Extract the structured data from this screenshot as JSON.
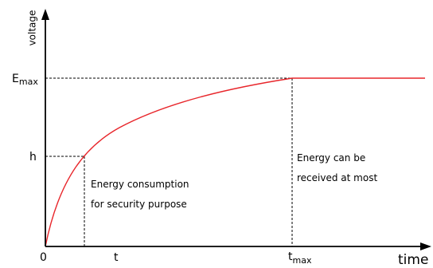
{
  "axes": {
    "y_label": "voltage",
    "x_label": "time",
    "origin_label": "0"
  },
  "y_ticks": {
    "emax_main": "E",
    "emax_sub": "max",
    "h": "h"
  },
  "x_ticks": {
    "t": "t",
    "tmax_main": "t",
    "tmax_sub": "max"
  },
  "annotations": {
    "left_line1": "Energy consumption",
    "left_line2": "for security purpose",
    "right_line1": "Energy can be",
    "right_line2": "received at most"
  },
  "colors": {
    "curve": "#e8262b",
    "axes": "#000000",
    "guides": "#000000"
  }
}
